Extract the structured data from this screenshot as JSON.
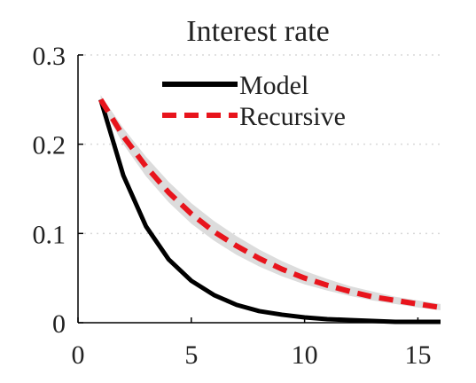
{
  "chart_data": {
    "type": "line",
    "title": "Interest rate",
    "xlabel": "",
    "ylabel": "",
    "xlim": [
      0,
      16
    ],
    "ylim": [
      0,
      0.3
    ],
    "x_ticks": [
      0,
      5,
      10,
      15
    ],
    "y_ticks": [
      0,
      0.1,
      0.2,
      0.3
    ],
    "x_tick_labels": [
      "0",
      "5",
      "10",
      "15"
    ],
    "y_tick_labels": [
      "0",
      "0.1",
      "0.2",
      "0.3"
    ],
    "grid": "horizontal dotted",
    "legend_position": "top-right",
    "x": [
      1,
      2,
      3,
      4,
      5,
      6,
      7,
      8,
      9,
      10,
      11,
      12,
      13,
      14,
      15,
      16
    ],
    "series": [
      {
        "name": "Model",
        "style": "solid",
        "color": "#000000",
        "values": [
          0.25,
          0.165,
          0.108,
          0.071,
          0.047,
          0.031,
          0.02,
          0.013,
          0.009,
          0.006,
          0.004,
          0.003,
          0.002,
          0.001,
          0.001,
          0.001
        ]
      },
      {
        "name": "Recursive",
        "style": "dashed",
        "color": "#e8141c",
        "values": [
          0.25,
          0.209,
          0.175,
          0.146,
          0.122,
          0.102,
          0.086,
          0.072,
          0.06,
          0.05,
          0.042,
          0.035,
          0.029,
          0.025,
          0.021,
          0.017
        ]
      }
    ],
    "band": {
      "color": "#dcdcdc",
      "lower": [
        0.245,
        0.2,
        0.164,
        0.135,
        0.111,
        0.092,
        0.076,
        0.063,
        0.052,
        0.043,
        0.036,
        0.03,
        0.025,
        0.021,
        0.017,
        0.014
      ],
      "upper": [
        0.255,
        0.218,
        0.186,
        0.158,
        0.134,
        0.114,
        0.097,
        0.082,
        0.069,
        0.058,
        0.049,
        0.041,
        0.035,
        0.029,
        0.025,
        0.021
      ]
    }
  }
}
